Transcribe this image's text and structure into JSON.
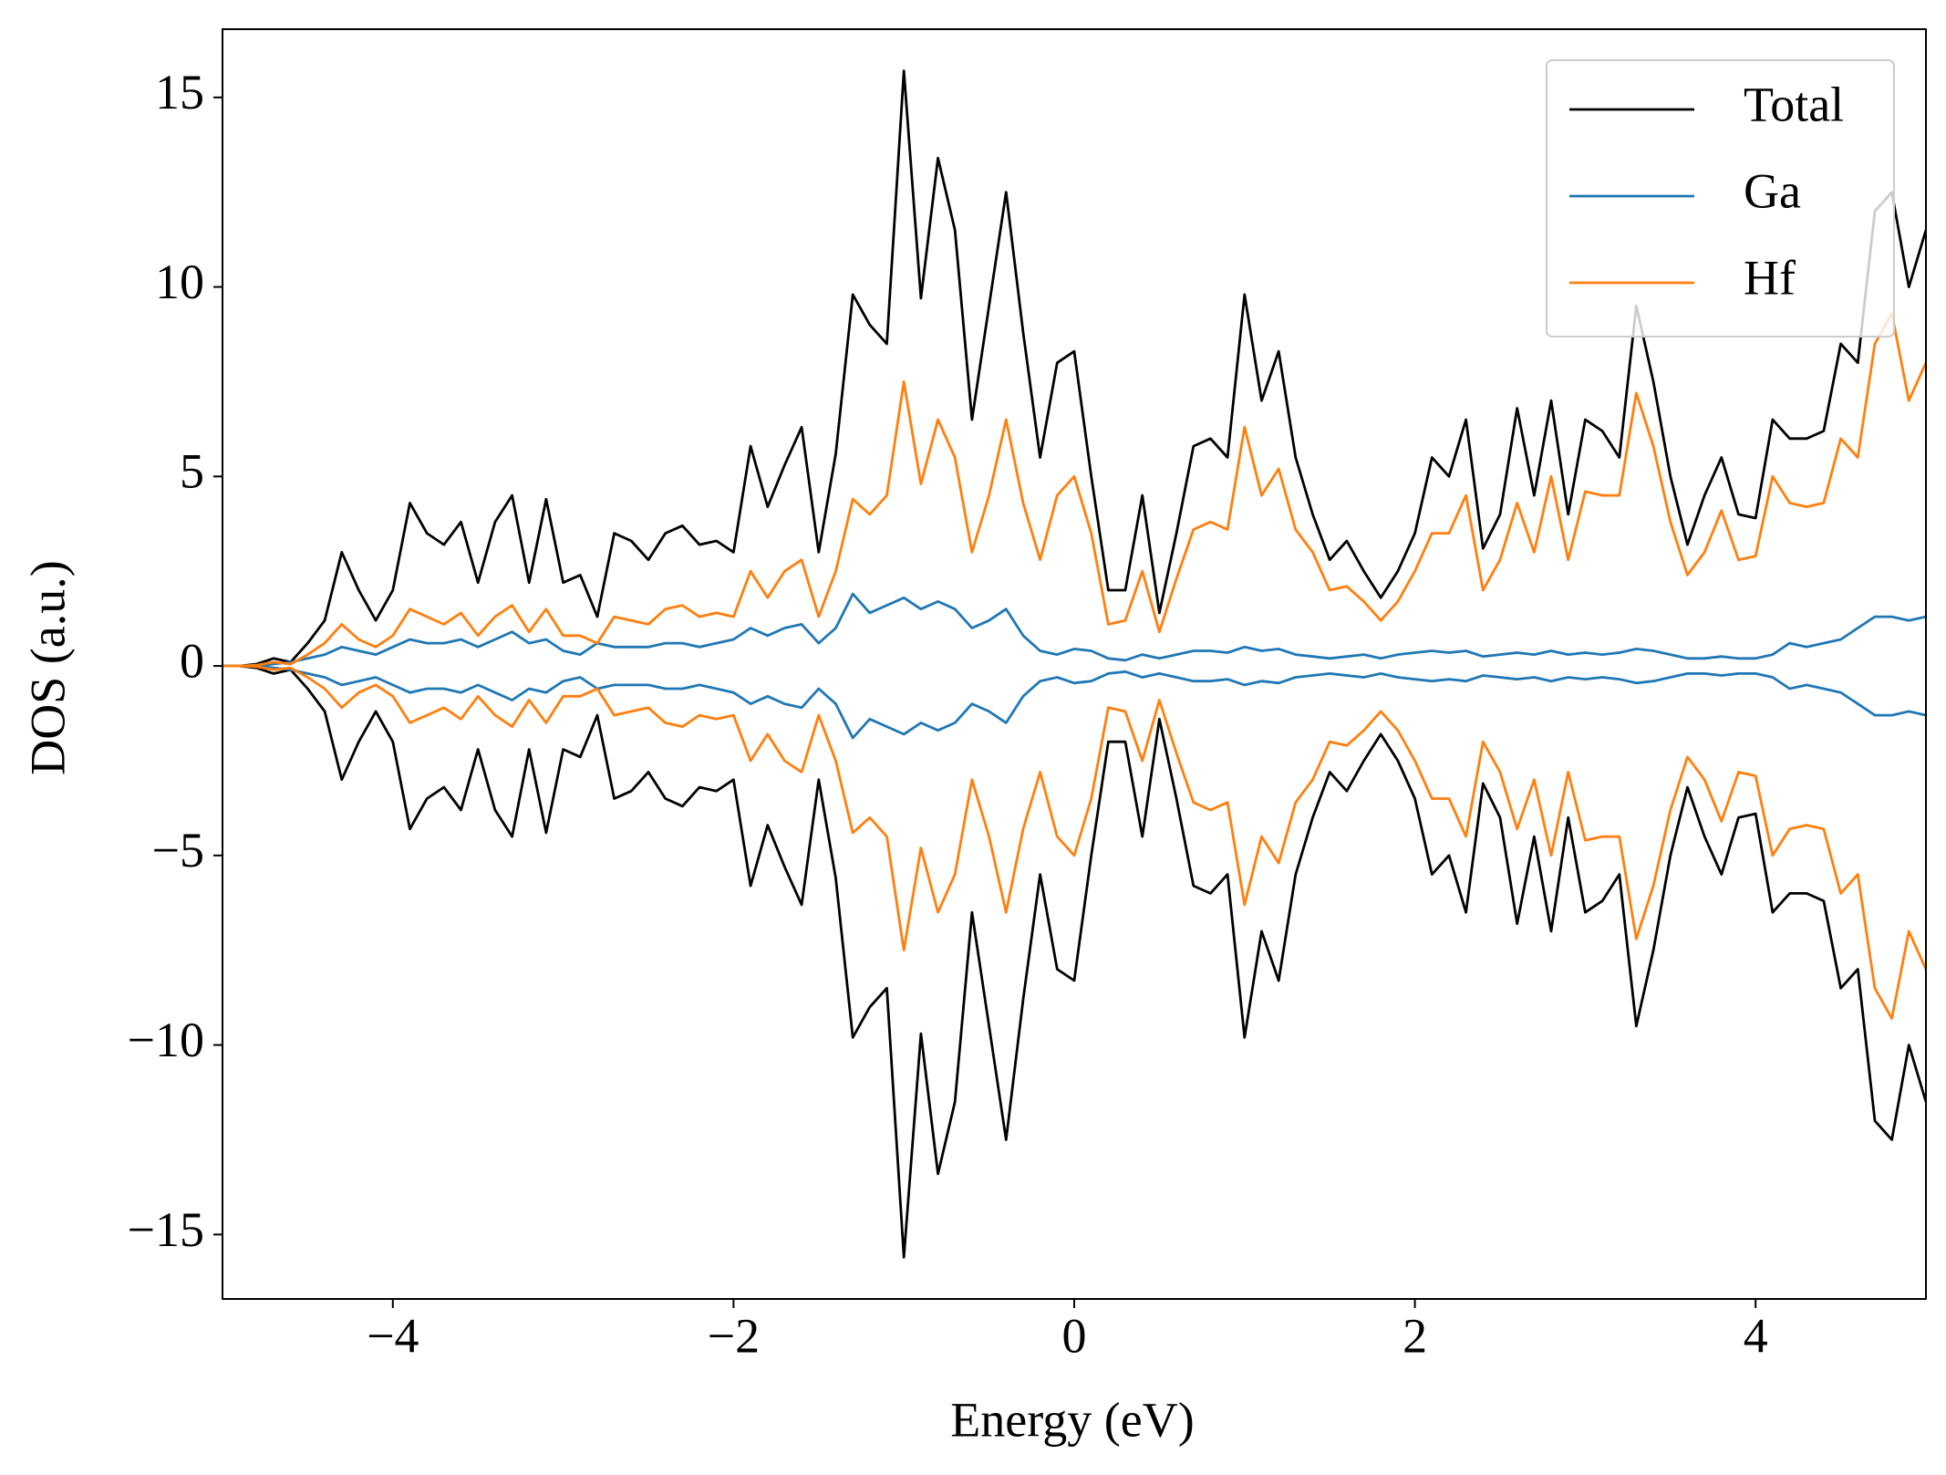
{
  "chart_data": {
    "type": "line",
    "xlabel": "Energy (eV)",
    "ylabel": "DOS (a.u.)",
    "x": [
      -5.0,
      -4.9,
      -4.8,
      -4.7,
      -4.6,
      -4.5,
      -4.4,
      -4.3,
      -4.2,
      -4.1,
      -4.0,
      -3.9,
      -3.8,
      -3.7,
      -3.6,
      -3.5,
      -3.4,
      -3.3,
      -3.2,
      -3.1,
      -3.0,
      -2.9,
      -2.8,
      -2.7,
      -2.6,
      -2.5,
      -2.4,
      -2.3,
      -2.2,
      -2.1,
      -2.0,
      -1.9,
      -1.8,
      -1.7,
      -1.6,
      -1.5,
      -1.4,
      -1.3,
      -1.2,
      -1.1,
      -1.0,
      -0.9,
      -0.8,
      -0.7,
      -0.6,
      -0.5,
      -0.4,
      -0.3,
      -0.2,
      -0.1,
      0.0,
      0.1,
      0.2,
      0.3,
      0.4,
      0.5,
      0.6,
      0.7,
      0.8,
      0.9,
      1.0,
      1.1,
      1.2,
      1.3,
      1.4,
      1.5,
      1.6,
      1.7,
      1.8,
      1.9,
      2.0,
      2.1,
      2.2,
      2.3,
      2.4,
      2.5,
      2.6,
      2.7,
      2.8,
      2.9,
      3.0,
      3.1,
      3.2,
      3.3,
      3.4,
      3.5,
      3.6,
      3.7,
      3.8,
      3.9,
      4.0,
      4.1,
      4.2,
      4.3,
      4.4,
      4.5,
      4.6,
      4.7,
      4.8,
      4.9,
      5.0
    ],
    "series": [
      {
        "name": "Total",
        "color": "#000000",
        "values": [
          0,
          0,
          0.05,
          0.2,
          0.1,
          0.6,
          1.2,
          3.0,
          2.0,
          1.2,
          2.0,
          4.3,
          3.5,
          3.2,
          3.8,
          2.2,
          3.8,
          4.5,
          2.2,
          4.4,
          2.2,
          2.4,
          1.3,
          3.5,
          3.3,
          2.8,
          3.5,
          3.7,
          3.2,
          3.3,
          3.0,
          5.8,
          4.2,
          5.3,
          6.3,
          3.0,
          5.6,
          9.8,
          9.0,
          8.5,
          15.7,
          9.7,
          13.4,
          11.5,
          6.5,
          9.5,
          12.5,
          8.8,
          5.5,
          8.0,
          8.3,
          5.0,
          2.0,
          2.0,
          4.5,
          1.4,
          3.5,
          5.8,
          6.0,
          5.5,
          9.8,
          7.0,
          8.3,
          5.5,
          4.0,
          2.8,
          3.3,
          2.5,
          1.8,
          2.5,
          3.5,
          5.5,
          5.0,
          6.5,
          3.1,
          4.0,
          6.8,
          4.5,
          7.0,
          4.0,
          6.5,
          6.2,
          5.5,
          9.5,
          7.5,
          5.0,
          3.2,
          4.5,
          5.5,
          4.0,
          3.9,
          6.5,
          6.0,
          6.0,
          6.2,
          8.5,
          8.0,
          12.0,
          12.5,
          10.0,
          11.5
        ],
        "values_down": [
          0,
          0,
          -0.05,
          -0.2,
          -0.1,
          -0.6,
          -1.2,
          -3.0,
          -2.0,
          -1.2,
          -2.0,
          -4.3,
          -3.5,
          -3.2,
          -3.8,
          -2.2,
          -3.8,
          -4.5,
          -2.2,
          -4.4,
          -2.2,
          -2.4,
          -1.3,
          -3.5,
          -3.3,
          -2.8,
          -3.5,
          -3.7,
          -3.2,
          -3.3,
          -3.0,
          -5.8,
          -4.2,
          -5.3,
          -6.3,
          -3.0,
          -5.6,
          -9.8,
          -9.0,
          -8.5,
          -15.6,
          -9.7,
          -13.4,
          -11.5,
          -6.5,
          -9.5,
          -12.5,
          -8.8,
          -5.5,
          -8.0,
          -8.3,
          -5.0,
          -2.0,
          -2.0,
          -4.5,
          -1.4,
          -3.5,
          -5.8,
          -6.0,
          -5.5,
          -9.8,
          -7.0,
          -8.3,
          -5.5,
          -4.0,
          -2.8,
          -3.3,
          -2.5,
          -1.8,
          -2.5,
          -3.5,
          -5.5,
          -5.0,
          -6.5,
          -3.1,
          -4.0,
          -6.8,
          -4.5,
          -7.0,
          -4.0,
          -6.5,
          -6.2,
          -5.5,
          -9.5,
          -7.5,
          -5.0,
          -3.2,
          -4.5,
          -5.5,
          -4.0,
          -3.9,
          -6.5,
          -6.0,
          -6.0,
          -6.2,
          -8.5,
          -8.0,
          -12.0,
          -12.5,
          -10.0,
          -11.5
        ]
      },
      {
        "name": "Ga",
        "color": "#1f77b4",
        "values": [
          0,
          0,
          0,
          0.05,
          0.1,
          0.2,
          0.3,
          0.5,
          0.4,
          0.3,
          0.5,
          0.7,
          0.6,
          0.6,
          0.7,
          0.5,
          0.7,
          0.9,
          0.6,
          0.7,
          0.4,
          0.3,
          0.6,
          0.5,
          0.5,
          0.5,
          0.6,
          0.6,
          0.5,
          0.6,
          0.7,
          1.0,
          0.8,
          1.0,
          1.1,
          0.6,
          1.0,
          1.9,
          1.4,
          1.6,
          1.8,
          1.5,
          1.7,
          1.5,
          1.0,
          1.2,
          1.5,
          0.8,
          0.4,
          0.3,
          0.45,
          0.4,
          0.2,
          0.15,
          0.3,
          0.2,
          0.3,
          0.4,
          0.4,
          0.35,
          0.5,
          0.4,
          0.45,
          0.3,
          0.25,
          0.2,
          0.25,
          0.3,
          0.2,
          0.3,
          0.35,
          0.4,
          0.35,
          0.4,
          0.25,
          0.3,
          0.35,
          0.3,
          0.4,
          0.3,
          0.35,
          0.3,
          0.35,
          0.45,
          0.4,
          0.3,
          0.2,
          0.2,
          0.25,
          0.2,
          0.2,
          0.3,
          0.6,
          0.5,
          0.6,
          0.7,
          1.0,
          1.3,
          1.3,
          1.2,
          1.3
        ],
        "values_down": [
          0,
          0,
          0,
          -0.05,
          -0.1,
          -0.2,
          -0.3,
          -0.5,
          -0.4,
          -0.3,
          -0.5,
          -0.7,
          -0.6,
          -0.6,
          -0.7,
          -0.5,
          -0.7,
          -0.9,
          -0.6,
          -0.7,
          -0.4,
          -0.3,
          -0.6,
          -0.5,
          -0.5,
          -0.5,
          -0.6,
          -0.6,
          -0.5,
          -0.6,
          -0.7,
          -1.0,
          -0.8,
          -1.0,
          -1.1,
          -0.6,
          -1.0,
          -1.9,
          -1.4,
          -1.6,
          -1.8,
          -1.5,
          -1.7,
          -1.5,
          -1.0,
          -1.2,
          -1.5,
          -0.8,
          -0.4,
          -0.3,
          -0.45,
          -0.4,
          -0.2,
          -0.15,
          -0.3,
          -0.2,
          -0.3,
          -0.4,
          -0.4,
          -0.35,
          -0.5,
          -0.4,
          -0.45,
          -0.3,
          -0.25,
          -0.2,
          -0.25,
          -0.3,
          -0.2,
          -0.3,
          -0.35,
          -0.4,
          -0.35,
          -0.4,
          -0.25,
          -0.3,
          -0.35,
          -0.3,
          -0.4,
          -0.3,
          -0.35,
          -0.3,
          -0.35,
          -0.45,
          -0.4,
          -0.3,
          -0.2,
          -0.2,
          -0.25,
          -0.2,
          -0.2,
          -0.3,
          -0.6,
          -0.5,
          -0.6,
          -0.7,
          -1.0,
          -1.3,
          -1.3,
          -1.2,
          -1.3
        ]
      },
      {
        "name": "Hf",
        "color": "#ff7f0e",
        "values": [
          0,
          0,
          0.02,
          0.1,
          0.05,
          0.3,
          0.6,
          1.1,
          0.7,
          0.5,
          0.8,
          1.5,
          1.3,
          1.1,
          1.4,
          0.8,
          1.3,
          1.6,
          0.9,
          1.5,
          0.8,
          0.8,
          0.6,
          1.3,
          1.2,
          1.1,
          1.5,
          1.6,
          1.3,
          1.4,
          1.3,
          2.5,
          1.8,
          2.5,
          2.8,
          1.3,
          2.5,
          4.4,
          4.0,
          4.5,
          7.5,
          4.8,
          6.5,
          5.5,
          3.0,
          4.5,
          6.5,
          4.3,
          2.8,
          4.5,
          5.0,
          3.5,
          1.1,
          1.2,
          2.5,
          0.9,
          2.3,
          3.6,
          3.8,
          3.6,
          6.3,
          4.5,
          5.2,
          3.6,
          3.0,
          2.0,
          2.1,
          1.7,
          1.2,
          1.7,
          2.5,
          3.5,
          3.5,
          4.5,
          2.0,
          2.8,
          4.3,
          3.0,
          5.0,
          2.8,
          4.6,
          4.5,
          4.5,
          7.2,
          5.8,
          3.8,
          2.4,
          3.0,
          4.1,
          2.8,
          2.9,
          5.0,
          4.3,
          4.2,
          4.3,
          6.0,
          5.5,
          8.5,
          9.3,
          7.0,
          8.0
        ],
        "values_down": [
          0,
          0,
          -0.02,
          -0.1,
          -0.05,
          -0.3,
          -0.6,
          -1.1,
          -0.7,
          -0.5,
          -0.8,
          -1.5,
          -1.3,
          -1.1,
          -1.4,
          -0.8,
          -1.3,
          -1.6,
          -0.9,
          -1.5,
          -0.8,
          -0.8,
          -0.6,
          -1.3,
          -1.2,
          -1.1,
          -1.5,
          -1.6,
          -1.3,
          -1.4,
          -1.3,
          -2.5,
          -1.8,
          -2.5,
          -2.8,
          -1.3,
          -2.5,
          -4.4,
          -4.0,
          -4.5,
          -7.5,
          -4.8,
          -6.5,
          -5.5,
          -3.0,
          -4.5,
          -6.5,
          -4.3,
          -2.8,
          -4.5,
          -5.0,
          -3.5,
          -1.1,
          -1.2,
          -2.5,
          -0.9,
          -2.3,
          -3.6,
          -3.8,
          -3.6,
          -6.3,
          -4.5,
          -5.2,
          -3.6,
          -3.0,
          -2.0,
          -2.1,
          -1.7,
          -1.2,
          -1.7,
          -2.5,
          -3.5,
          -3.5,
          -4.5,
          -2.0,
          -2.8,
          -4.3,
          -3.0,
          -5.0,
          -2.8,
          -4.6,
          -4.5,
          -4.5,
          -7.2,
          -5.8,
          -3.8,
          -2.4,
          -3.0,
          -4.1,
          -2.8,
          -2.9,
          -5.0,
          -4.3,
          -4.2,
          -4.3,
          -6.0,
          -5.5,
          -8.5,
          -9.3,
          -7.0,
          -8.0
        ]
      }
    ],
    "xlim": [
      -5,
      5
    ],
    "ylim": [
      -16.7,
      16.8
    ],
    "xticks": [
      {
        "value": -4,
        "label": "−4"
      },
      {
        "value": -2,
        "label": "−2"
      },
      0,
      2,
      4
    ],
    "yticks": [
      {
        "value": -15,
        "label": "−15"
      },
      {
        "value": -10,
        "label": "−10"
      },
      {
        "value": -5,
        "label": "−5"
      },
      0,
      5,
      10,
      15
    ],
    "grid": false,
    "legend": "upper right"
  }
}
